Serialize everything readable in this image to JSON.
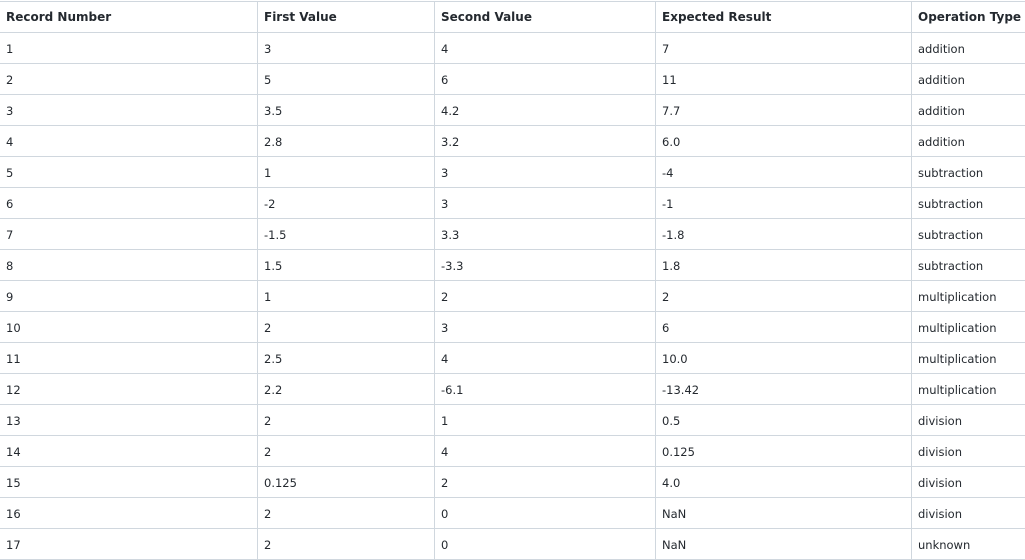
{
  "table": {
    "columns": [
      "Record Number",
      "First Value",
      "Second Value",
      "Expected Result",
      "Operation Type"
    ],
    "rows": [
      [
        "1",
        "3",
        "4",
        "7",
        "addition"
      ],
      [
        "2",
        "5",
        "6",
        "11",
        "addition"
      ],
      [
        "3",
        "3.5",
        "4.2",
        "7.7",
        "addition"
      ],
      [
        "4",
        "2.8",
        "3.2",
        "6.0",
        "addition"
      ],
      [
        "5",
        "1",
        "3",
        "-4",
        "subtraction"
      ],
      [
        "6",
        "-2",
        "3",
        "-1",
        "subtraction"
      ],
      [
        "7",
        "-1.5",
        "3.3",
        "-1.8",
        "subtraction"
      ],
      [
        "8",
        "1.5",
        "-3.3",
        "1.8",
        "subtraction"
      ],
      [
        "9",
        "1",
        "2",
        "2",
        "multiplication"
      ],
      [
        "10",
        "2",
        "3",
        "6",
        "multiplication"
      ],
      [
        "11",
        "2.5",
        "4",
        "10.0",
        "multiplication"
      ],
      [
        "12",
        "2.2",
        "-6.1",
        "-13.42",
        "multiplication"
      ],
      [
        "13",
        "2",
        "1",
        "0.5",
        "division"
      ],
      [
        "14",
        "2",
        "4",
        "0.125",
        "division"
      ],
      [
        "15",
        "0.125",
        "2",
        "4.0",
        "division"
      ],
      [
        "16",
        "2",
        "0",
        "NaN",
        "division"
      ],
      [
        "17",
        "2",
        "0",
        "NaN",
        "unknown"
      ]
    ]
  },
  "colors": {
    "border": "#d0d7de",
    "text": "#24292f",
    "background": "#ffffff"
  }
}
